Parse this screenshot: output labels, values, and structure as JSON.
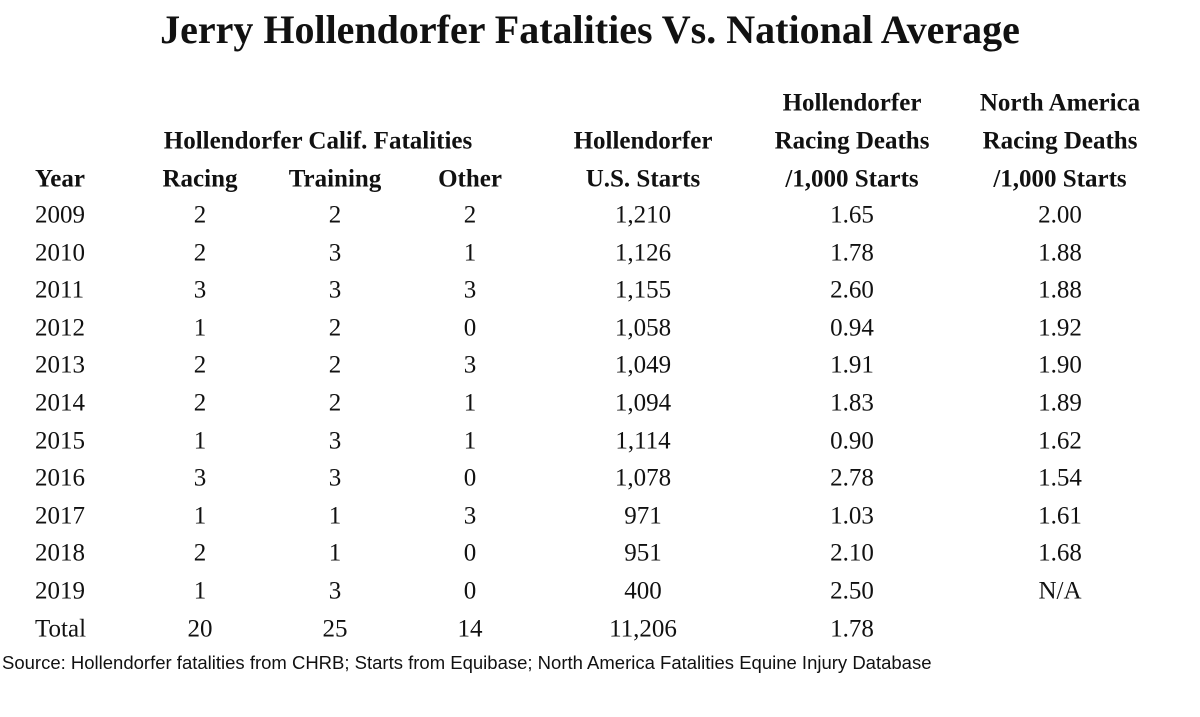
{
  "title": "Jerry Hollendorfer Fatalities Vs. National Average",
  "headers": {
    "group": "Hollendorfer Calif. Fatalities",
    "year": "Year",
    "racing": "Racing",
    "training": "Training",
    "other": "Other",
    "starts": [
      "Hollendorfer",
      "U.S. Starts"
    ],
    "holl_rate": [
      "Hollendorfer",
      "Racing Deaths",
      "/1,000 Starts"
    ],
    "na_rate": [
      "North America",
      "Racing Deaths",
      "/1,000 Starts"
    ]
  },
  "source": "Source: Hollendorfer fatalities from CHRB; Starts from Equibase; North America Fatalities Equine Injury Database",
  "chart_data": {
    "type": "table",
    "title": "Jerry Hollendorfer Fatalities Vs. National Average",
    "columns": [
      "Year",
      "Racing",
      "Training",
      "Other",
      "Hollendorfer U.S. Starts",
      "Hollendorfer Racing Deaths /1,000 Starts",
      "North America Racing Deaths /1,000 Starts"
    ],
    "rows": [
      [
        "2009",
        "2",
        "2",
        "2",
        "1,210",
        "1.65",
        "2.00"
      ],
      [
        "2010",
        "2",
        "3",
        "1",
        "1,126",
        "1.78",
        "1.88"
      ],
      [
        "2011",
        "3",
        "3",
        "3",
        "1,155",
        "2.60",
        "1.88"
      ],
      [
        "2012",
        "1",
        "2",
        "0",
        "1,058",
        "0.94",
        "1.92"
      ],
      [
        "2013",
        "2",
        "2",
        "3",
        "1,049",
        "1.91",
        "1.90"
      ],
      [
        "2014",
        "2",
        "2",
        "1",
        "1,094",
        "1.83",
        "1.89"
      ],
      [
        "2015",
        "1",
        "3",
        "1",
        "1,114",
        "0.90",
        "1.62"
      ],
      [
        "2016",
        "3",
        "3",
        "0",
        "1,078",
        "2.78",
        "1.54"
      ],
      [
        "2017",
        "1",
        "1",
        "3",
        "971",
        "1.03",
        "1.61"
      ],
      [
        "2018",
        "2",
        "1",
        "0",
        "951",
        "2.10",
        "1.68"
      ],
      [
        "2019",
        "1",
        "3",
        "0",
        "400",
        "2.50",
        "N/A"
      ],
      [
        "Total",
        "20",
        "25",
        "14",
        "11,206",
        "1.78",
        ""
      ]
    ]
  }
}
